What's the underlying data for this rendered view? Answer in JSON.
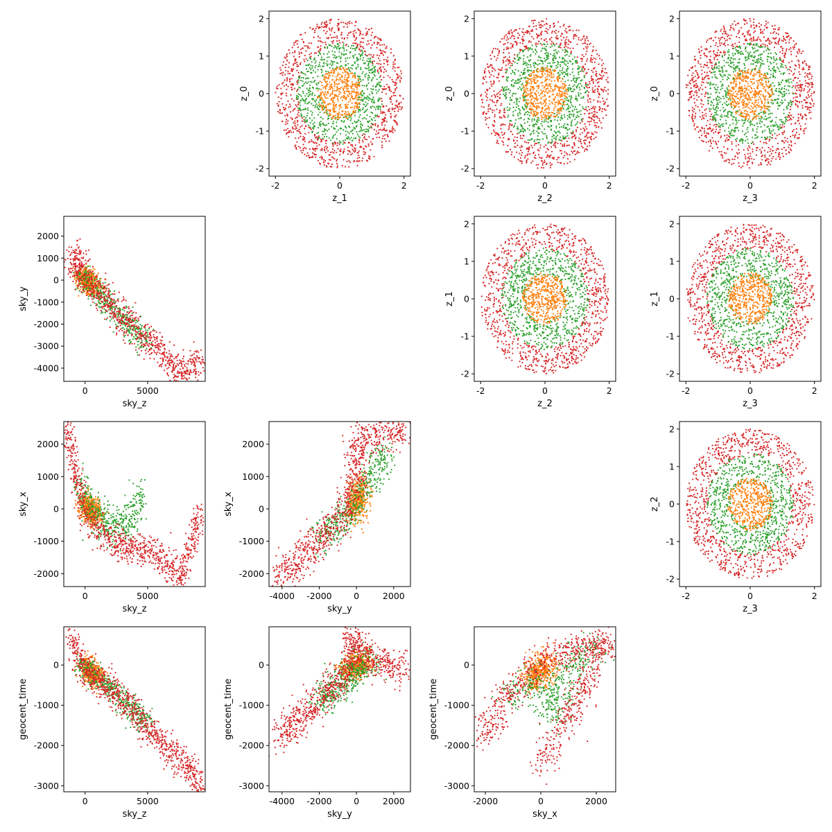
{
  "colors": {
    "blue": "#1f77b4",
    "orange": "#ff7f0e",
    "green": "#2ca02c",
    "red": "#d62728"
  },
  "chart_data": [
    {
      "type": "scatter",
      "grid": false,
      "pattern": "ring",
      "xlabel": "z_1",
      "ylabel": "z_0",
      "xlim": [
        -2.2,
        2.2
      ],
      "ylim": [
        -2.2,
        2.2
      ],
      "xticks": [
        "-2",
        "0",
        "2"
      ],
      "xtick_values": [
        -2,
        0,
        2
      ],
      "yticks": [
        "-2",
        "-1",
        "0",
        "1",
        "2"
      ],
      "ytick_values": [
        -2,
        -1,
        0,
        1,
        2
      ],
      "series": [
        {
          "color": "#d62728",
          "radius_range": [
            1.3,
            2.0
          ]
        },
        {
          "color": "#2ca02c",
          "radius_range": [
            0.6,
            1.35
          ]
        },
        {
          "color": "#ff7f0e",
          "radius_range": [
            0.0,
            0.7
          ]
        }
      ]
    },
    {
      "type": "scatter",
      "grid": false,
      "pattern": "ring",
      "xlabel": "z_2",
      "ylabel": "z_0",
      "xlim": [
        -2.2,
        2.2
      ],
      "ylim": [
        -2.2,
        2.2
      ],
      "xticks": [
        "-2",
        "0",
        "2"
      ],
      "xtick_values": [
        -2,
        0,
        2
      ],
      "yticks": [
        "-2",
        "-1",
        "0",
        "1",
        "2"
      ],
      "ytick_values": [
        -2,
        -1,
        0,
        1,
        2
      ],
      "series": [
        {
          "color": "#d62728",
          "radius_range": [
            1.3,
            2.0
          ]
        },
        {
          "color": "#2ca02c",
          "radius_range": [
            0.6,
            1.35
          ]
        },
        {
          "color": "#ff7f0e",
          "radius_range": [
            0.0,
            0.7
          ]
        }
      ]
    },
    {
      "type": "scatter",
      "grid": false,
      "pattern": "ring",
      "xlabel": "z_3",
      "ylabel": "z_0",
      "xlim": [
        -2.2,
        2.2
      ],
      "ylim": [
        -2.2,
        2.2
      ],
      "xticks": [
        "-2",
        "0",
        "2"
      ],
      "xtick_values": [
        -2,
        0,
        2
      ],
      "yticks": [
        "-2",
        "-1",
        "0",
        "1",
        "2"
      ],
      "ytick_values": [
        -2,
        -1,
        0,
        1,
        2
      ],
      "series": [
        {
          "color": "#d62728",
          "radius_range": [
            1.3,
            2.0
          ]
        },
        {
          "color": "#2ca02c",
          "radius_range": [
            0.6,
            1.35
          ]
        },
        {
          "color": "#ff7f0e",
          "radius_range": [
            0.0,
            0.7
          ]
        }
      ]
    },
    {
      "type": "scatter",
      "grid": false,
      "pattern": "ring",
      "xlabel": "z_2",
      "ylabel": "z_1",
      "xlim": [
        -2.2,
        2.2
      ],
      "ylim": [
        -2.2,
        2.2
      ],
      "xticks": [
        "-2",
        "0",
        "2"
      ],
      "xtick_values": [
        -2,
        0,
        2
      ],
      "yticks": [
        "-2",
        "-1",
        "0",
        "1",
        "2"
      ],
      "ytick_values": [
        -2,
        -1,
        0,
        1,
        2
      ],
      "series": [
        {
          "color": "#d62728",
          "radius_range": [
            1.3,
            2.0
          ]
        },
        {
          "color": "#2ca02c",
          "radius_range": [
            0.6,
            1.35
          ]
        },
        {
          "color": "#ff7f0e",
          "radius_range": [
            0.0,
            0.7
          ]
        }
      ]
    },
    {
      "type": "scatter",
      "grid": false,
      "pattern": "ring",
      "xlabel": "z_3",
      "ylabel": "z_1",
      "xlim": [
        -2.2,
        2.2
      ],
      "ylim": [
        -2.2,
        2.2
      ],
      "xticks": [
        "-2",
        "0",
        "2"
      ],
      "xtick_values": [
        -2,
        0,
        2
      ],
      "yticks": [
        "-2",
        "-1",
        "0",
        "1",
        "2"
      ],
      "ytick_values": [
        -2,
        -1,
        0,
        1,
        2
      ],
      "series": [
        {
          "color": "#d62728",
          "radius_range": [
            1.3,
            2.0
          ]
        },
        {
          "color": "#2ca02c",
          "radius_range": [
            0.6,
            1.35
          ]
        },
        {
          "color": "#ff7f0e",
          "radius_range": [
            0.0,
            0.7
          ]
        }
      ]
    },
    {
      "type": "scatter",
      "grid": false,
      "pattern": "ring",
      "xlabel": "z_3",
      "ylabel": "z_2",
      "xlim": [
        -2.2,
        2.2
      ],
      "ylim": [
        -2.2,
        2.2
      ],
      "xticks": [
        "-2",
        "0",
        "2"
      ],
      "xtick_values": [
        -2,
        0,
        2
      ],
      "yticks": [
        "-2",
        "-1",
        "0",
        "1",
        "2"
      ],
      "ytick_values": [
        -2,
        -1,
        0,
        1,
        2
      ],
      "series": [
        {
          "color": "#d62728",
          "radius_range": [
            1.3,
            2.0
          ]
        },
        {
          "color": "#2ca02c",
          "radius_range": [
            0.6,
            1.35
          ]
        },
        {
          "color": "#ff7f0e",
          "radius_range": [
            0.0,
            0.7
          ]
        }
      ]
    },
    {
      "type": "scatter",
      "grid": false,
      "pattern": "path",
      "xlabel": "sky_z",
      "ylabel": "sky_y",
      "xlim": [
        -1700,
        9600
      ],
      "ylim": [
        -4600,
        2900
      ],
      "xticks": [
        "0",
        "5000"
      ],
      "xtick_values": [
        0,
        5000
      ],
      "yticks": [
        "-4000",
        "-3000",
        "-2000",
        "-1000",
        "0",
        "1000",
        "2000"
      ],
      "ytick_values": [
        -4000,
        -3000,
        -2000,
        -1000,
        0,
        1000,
        2000
      ],
      "series": [
        {
          "color": "#ff7f0e",
          "path": [
            [
              -300,
              300
            ],
            [
              200,
              -100
            ],
            [
              800,
              -400
            ]
          ],
          "spread": [
            400,
            250
          ]
        },
        {
          "color": "#2ca02c",
          "path": [
            [
              -500,
              300
            ],
            [
              1000,
              -500
            ],
            [
              2500,
              -1500
            ],
            [
              4000,
              -2300
            ],
            [
              5000,
              -2800
            ]
          ],
          "spread": [
            300,
            300
          ]
        },
        {
          "color": "#d62728",
          "path": [
            [
              -1200,
              400
            ],
            [
              -800,
              800
            ],
            [
              -500,
              1200
            ],
            [
              -300,
              200
            ],
            [
              500,
              -300
            ],
            [
              1500,
              -800
            ],
            [
              3000,
              -1700
            ],
            [
              4500,
              -2500
            ],
            [
              6000,
              -3200
            ],
            [
              7700,
              -4300
            ],
            [
              9300,
              -3600
            ]
          ],
          "spread": [
            350,
            350
          ]
        }
      ]
    },
    {
      "type": "scatter",
      "grid": false,
      "pattern": "path",
      "xlabel": "sky_z",
      "ylabel": "sky_x",
      "xlim": [
        -1700,
        9600
      ],
      "ylim": [
        -2400,
        2700
      ],
      "xticks": [
        "0",
        "5000"
      ],
      "xtick_values": [
        0,
        5000
      ],
      "yticks": [
        "-2000",
        "-1000",
        "0",
        "1000",
        "2000"
      ],
      "ytick_values": [
        -2000,
        -1000,
        0,
        1000,
        2000
      ],
      "series": [
        {
          "color": "#ff7f0e",
          "path": [
            [
              0,
              200
            ],
            [
              500,
              -100
            ],
            [
              1000,
              -200
            ]
          ],
          "spread": [
            350,
            200
          ]
        },
        {
          "color": "#2ca02c",
          "path": [
            [
              -400,
              800
            ],
            [
              1000,
              -300
            ],
            [
              2500,
              -600
            ],
            [
              3500,
              -400
            ],
            [
              4500,
              300
            ]
          ],
          "spread": [
            350,
            300
          ]
        },
        {
          "color": "#d62728",
          "path": [
            [
              -1400,
              2500
            ],
            [
              -1000,
              1700
            ],
            [
              -600,
              900
            ],
            [
              -200,
              0
            ],
            [
              600,
              -500
            ],
            [
              2000,
              -1000
            ],
            [
              3500,
              -1200
            ],
            [
              5500,
              -1300
            ],
            [
              7800,
              -2100
            ],
            [
              9200,
              -100
            ]
          ],
          "spread": [
            250,
            250
          ]
        }
      ]
    },
    {
      "type": "scatter",
      "grid": false,
      "pattern": "path",
      "xlabel": "sky_y",
      "ylabel": "sky_x",
      "xlim": [
        -4700,
        2900
      ],
      "ylim": [
        -2400,
        2700
      ],
      "xticks": [
        "-4000",
        "-2000",
        "0",
        "2000"
      ],
      "xtick_values": [
        -4000,
        -2000,
        0,
        2000
      ],
      "yticks": [
        "-2000",
        "-1000",
        "0",
        "1000",
        "2000"
      ],
      "ytick_values": [
        -2000,
        -1000,
        0,
        1000,
        2000
      ],
      "series": [
        {
          "color": "#ff7f0e",
          "path": [
            [
              -200,
              0
            ],
            [
              100,
              300
            ],
            [
              300,
              600
            ]
          ],
          "spread": [
            250,
            300
          ]
        },
        {
          "color": "#2ca02c",
          "path": [
            [
              -2000,
              -1000
            ],
            [
              -1000,
              -500
            ],
            [
              0,
              200
            ],
            [
              800,
              1000
            ],
            [
              1600,
              1800
            ]
          ],
          "spread": [
            300,
            250
          ]
        },
        {
          "color": "#d62728",
          "path": [
            [
              -4300,
              -2100
            ],
            [
              -3000,
              -1500
            ],
            [
              -2000,
              -1000
            ],
            [
              -1000,
              -400
            ],
            [
              -300,
              300
            ],
            [
              0,
              1200
            ],
            [
              0,
              2000
            ],
            [
              800,
              2200
            ],
            [
              2600,
              2400
            ]
          ],
          "spread": [
            300,
            300
          ]
        }
      ]
    },
    {
      "type": "scatter",
      "grid": false,
      "pattern": "path",
      "xlabel": "sky_z",
      "ylabel": "geocent_time",
      "xlim": [
        -1700,
        9600
      ],
      "ylim": [
        -3150,
        950
      ],
      "xticks": [
        "0",
        "5000"
      ],
      "xtick_values": [
        0,
        5000
      ],
      "yticks": [
        "-3000",
        "-2000",
        "-1000",
        "0"
      ],
      "ytick_values": [
        -3000,
        -2000,
        -1000,
        0
      ],
      "series": [
        {
          "color": "#ff7f0e",
          "path": [
            [
              0,
              0
            ],
            [
              500,
              -200
            ],
            [
              1000,
              -300
            ]
          ],
          "spread": [
            350,
            150
          ]
        },
        {
          "color": "#2ca02c",
          "path": [
            [
              -500,
              0
            ],
            [
              1000,
              -300
            ],
            [
              2500,
              -700
            ],
            [
              4000,
              -1200
            ],
            [
              5000,
              -1500
            ]
          ],
          "spread": [
            300,
            150
          ]
        },
        {
          "color": "#d62728",
          "path": [
            [
              -1300,
              700
            ],
            [
              -800,
              400
            ],
            [
              -200,
              0
            ],
            [
              800,
              -300
            ],
            [
              2000,
              -600
            ],
            [
              3500,
              -1000
            ],
            [
              5000,
              -1500
            ],
            [
              6500,
              -2100
            ],
            [
              7800,
              -2400
            ],
            [
              9200,
              -2900
            ]
          ],
          "spread": [
            300,
            200
          ]
        }
      ]
    },
    {
      "type": "scatter",
      "grid": false,
      "pattern": "path",
      "xlabel": "sky_y",
      "ylabel": "geocent_time",
      "xlim": [
        -4700,
        2900
      ],
      "ylim": [
        -3150,
        950
      ],
      "xticks": [
        "-4000",
        "-2000",
        "0",
        "2000"
      ],
      "xtick_values": [
        -4000,
        -2000,
        0,
        2000
      ],
      "yticks": [
        "-3000",
        "-2000",
        "-1000",
        "0"
      ],
      "ytick_values": [
        -3000,
        -2000,
        -1000,
        0
      ],
      "series": [
        {
          "color": "#ff7f0e",
          "path": [
            [
              -500,
              -200
            ],
            [
              0,
              0
            ],
            [
              500,
              100
            ]
          ],
          "spread": [
            300,
            150
          ]
        },
        {
          "color": "#2ca02c",
          "path": [
            [
              -2000,
              -900
            ],
            [
              -1000,
              -500
            ],
            [
              0,
              -100
            ],
            [
              800,
              100
            ]
          ],
          "spread": [
            350,
            200
          ]
        },
        {
          "color": "#d62728",
          "path": [
            [
              -4300,
              -1900
            ],
            [
              -3000,
              -1300
            ],
            [
              -2000,
              -900
            ],
            [
              -1000,
              -400
            ],
            [
              -300,
              0
            ],
            [
              0,
              500
            ],
            [
              -300,
              700
            ],
            [
              500,
              200
            ],
            [
              1500,
              0
            ],
            [
              2600,
              -100
            ]
          ],
          "spread": [
            300,
            200
          ]
        }
      ]
    },
    {
      "type": "scatter",
      "grid": false,
      "pattern": "path",
      "xlabel": "sky_x",
      "ylabel": "geocent_time",
      "xlim": [
        -2400,
        2700
      ],
      "ylim": [
        -3150,
        950
      ],
      "xticks": [
        "-2000",
        "0",
        "2000"
      ],
      "xtick_values": [
        -2000,
        0,
        2000
      ],
      "yticks": [
        "-3000",
        "-2000",
        "-1000",
        "0"
      ],
      "ytick_values": [
        -3000,
        -2000,
        -1000,
        0
      ],
      "series": [
        {
          "color": "#ff7f0e",
          "path": [
            [
              -300,
              -400
            ],
            [
              0,
              -100
            ],
            [
              300,
              0
            ]
          ],
          "spread": [
            250,
            200
          ]
        },
        {
          "color": "#2ca02c",
          "path": [
            [
              -1200,
              -800
            ],
            [
              0,
              -300
            ],
            [
              400,
              -1300
            ],
            [
              1200,
              100
            ],
            [
              2200,
              500
            ]
          ],
          "spread": [
            300,
            200
          ]
        },
        {
          "color": "#d62728",
          "path": [
            [
              -2100,
              -1900
            ],
            [
              -1300,
              -800
            ],
            [
              -500,
              -300
            ],
            [
              0,
              100
            ],
            [
              1000,
              300
            ],
            [
              1700,
              500
            ],
            [
              2400,
              600
            ],
            [
              0,
              -2500
            ]
          ],
          "spread": [
            250,
            200
          ]
        }
      ]
    }
  ]
}
